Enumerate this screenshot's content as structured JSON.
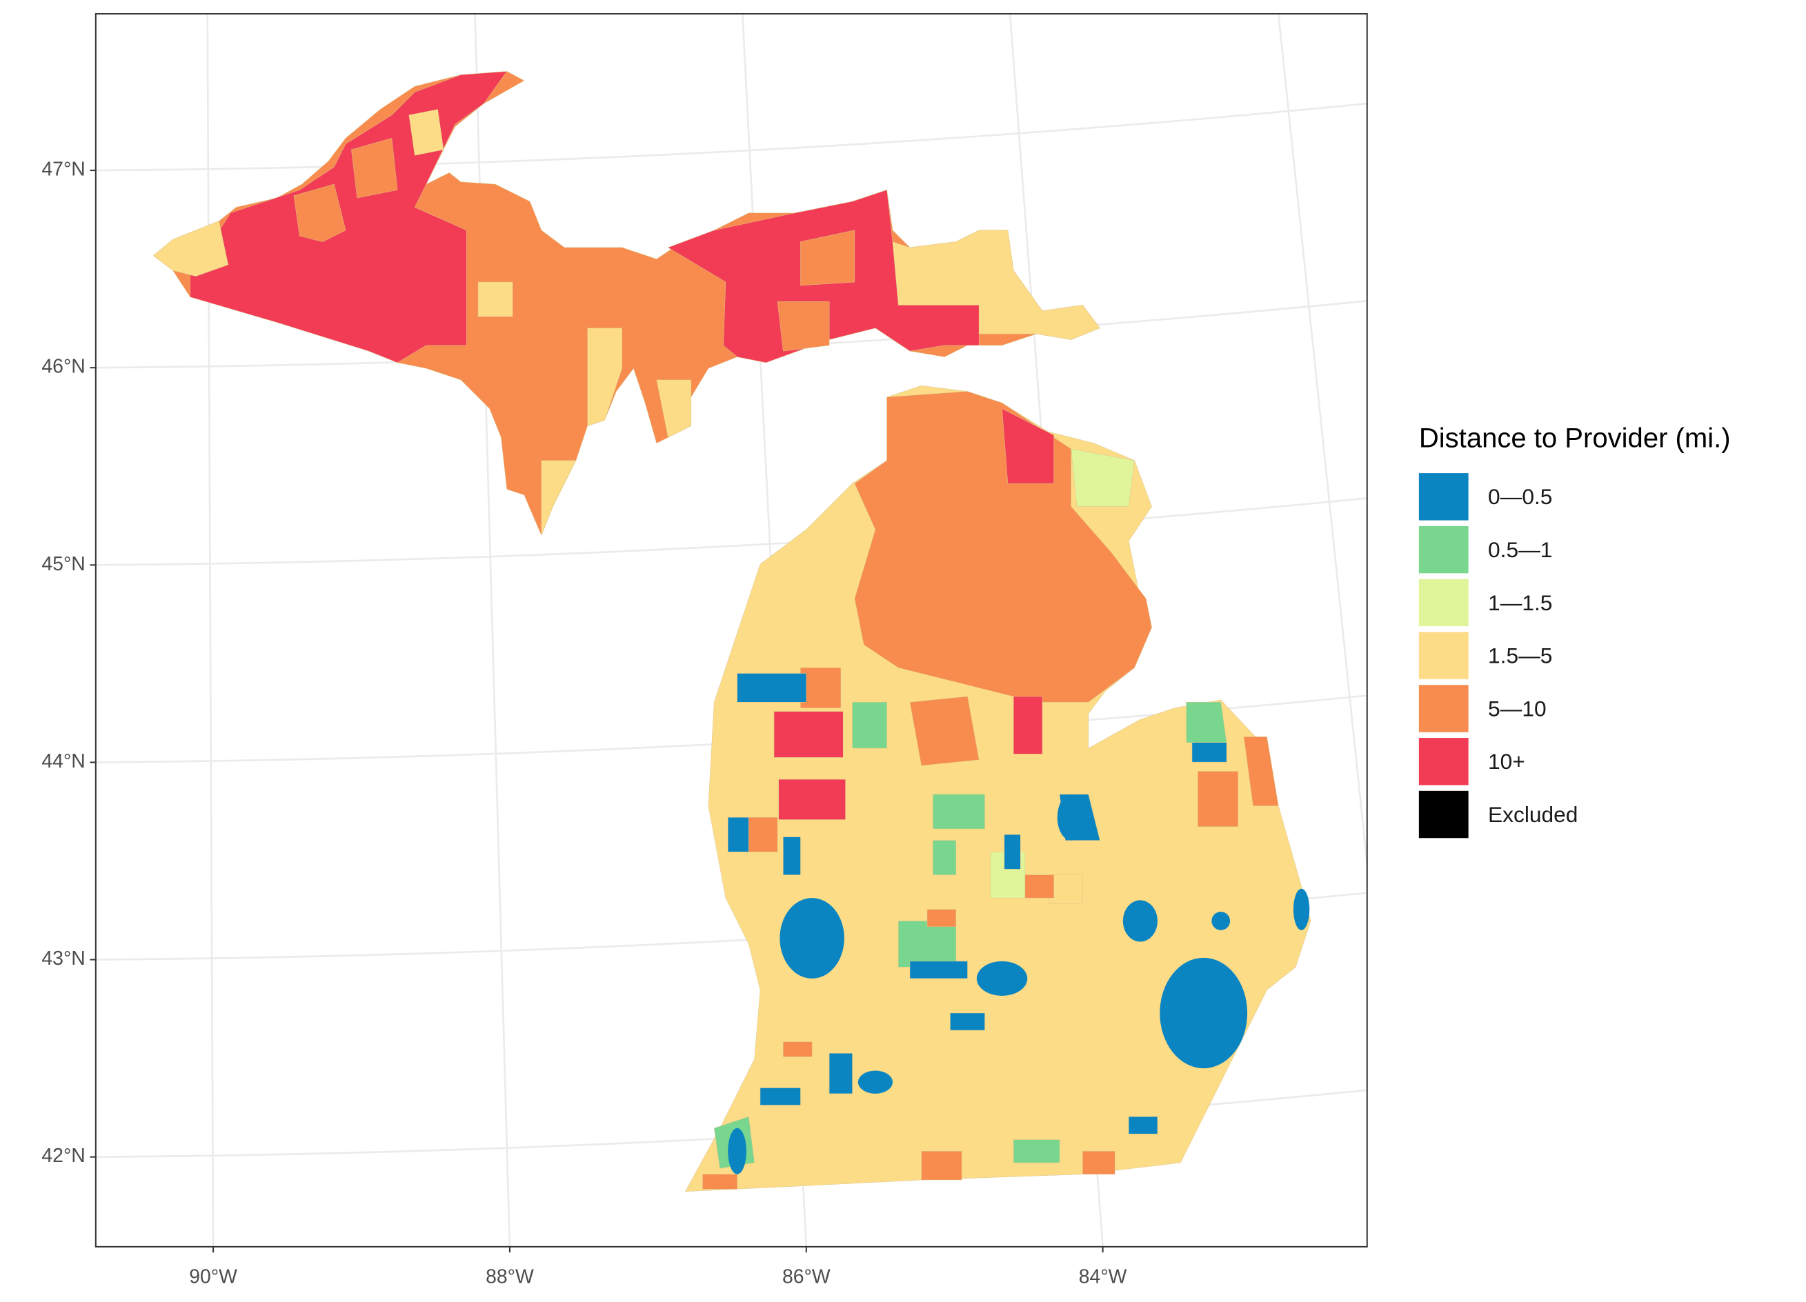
{
  "chart_data": {
    "type": "map",
    "xticks": [
      {
        "value": -90,
        "label": "90°W"
      },
      {
        "value": -88,
        "label": "88°W"
      },
      {
        "value": -86,
        "label": "86°W"
      },
      {
        "value": -84,
        "label": "84°W"
      }
    ],
    "yticks": [
      {
        "value": 42,
        "label": "42°N"
      },
      {
        "value": 43,
        "label": "43°N"
      },
      {
        "value": 44,
        "label": "44°N"
      },
      {
        "value": 45,
        "label": "45°N"
      },
      {
        "value": 46,
        "label": "46°N"
      },
      {
        "value": 47,
        "label": "47°N"
      }
    ],
    "grid": true,
    "legend": {
      "title": "Distance to Provider (mi.)",
      "position": "right",
      "items": [
        {
          "label": "0—0.5",
          "color": "#0a85c2"
        },
        {
          "label": "0.5—1",
          "color": "#78d68f"
        },
        {
          "label": "1—1.5",
          "color": "#e0f59a"
        },
        {
          "label": "1.5—5",
          "color": "#fddc88"
        },
        {
          "label": "5—10",
          "color": "#f88b4e"
        },
        {
          "label": "10+",
          "color": "#f23c56"
        },
        {
          "label": "Excluded",
          "color": "#000000"
        }
      ]
    }
  }
}
